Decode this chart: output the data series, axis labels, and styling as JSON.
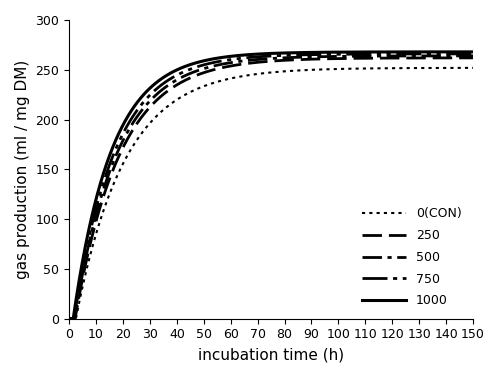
{
  "title": "",
  "xlabel": "incubation time (h)",
  "ylabel": "gas production (ml / mg DM)",
  "xlim": [
    0,
    150
  ],
  "ylim": [
    0,
    300
  ],
  "xticks": [
    0,
    10,
    20,
    30,
    40,
    50,
    60,
    70,
    80,
    90,
    100,
    110,
    120,
    130,
    140,
    150
  ],
  "yticks": [
    0,
    50,
    100,
    150,
    200,
    250,
    300
  ],
  "curves": [
    {
      "label": "0(CON)",
      "ls_key": "dotted",
      "linewidth": 1.5,
      "color": "#000000",
      "A": 252,
      "c": 0.055,
      "lag": 2.5
    },
    {
      "label": "250",
      "ls_key": "dashed",
      "linewidth": 2.0,
      "color": "#000000",
      "A": 262,
      "c": 0.06,
      "lag": 2.2
    },
    {
      "label": "500",
      "ls_key": "dashdotdot",
      "linewidth": 2.0,
      "color": "#000000",
      "A": 264,
      "c": 0.063,
      "lag": 2.0
    },
    {
      "label": "750",
      "ls_key": "dashdotdotdot",
      "linewidth": 2.0,
      "color": "#000000",
      "A": 266,
      "c": 0.066,
      "lag": 1.8
    },
    {
      "label": "1000",
      "ls_key": "solid",
      "linewidth": 2.2,
      "color": "#000000",
      "A": 268,
      "c": 0.07,
      "lag": 1.5
    }
  ],
  "legend_loc": "lower right",
  "legend_fontsize": 9,
  "axis_fontsize": 11,
  "tick_fontsize": 9,
  "figure_facecolor": "#ffffff"
}
